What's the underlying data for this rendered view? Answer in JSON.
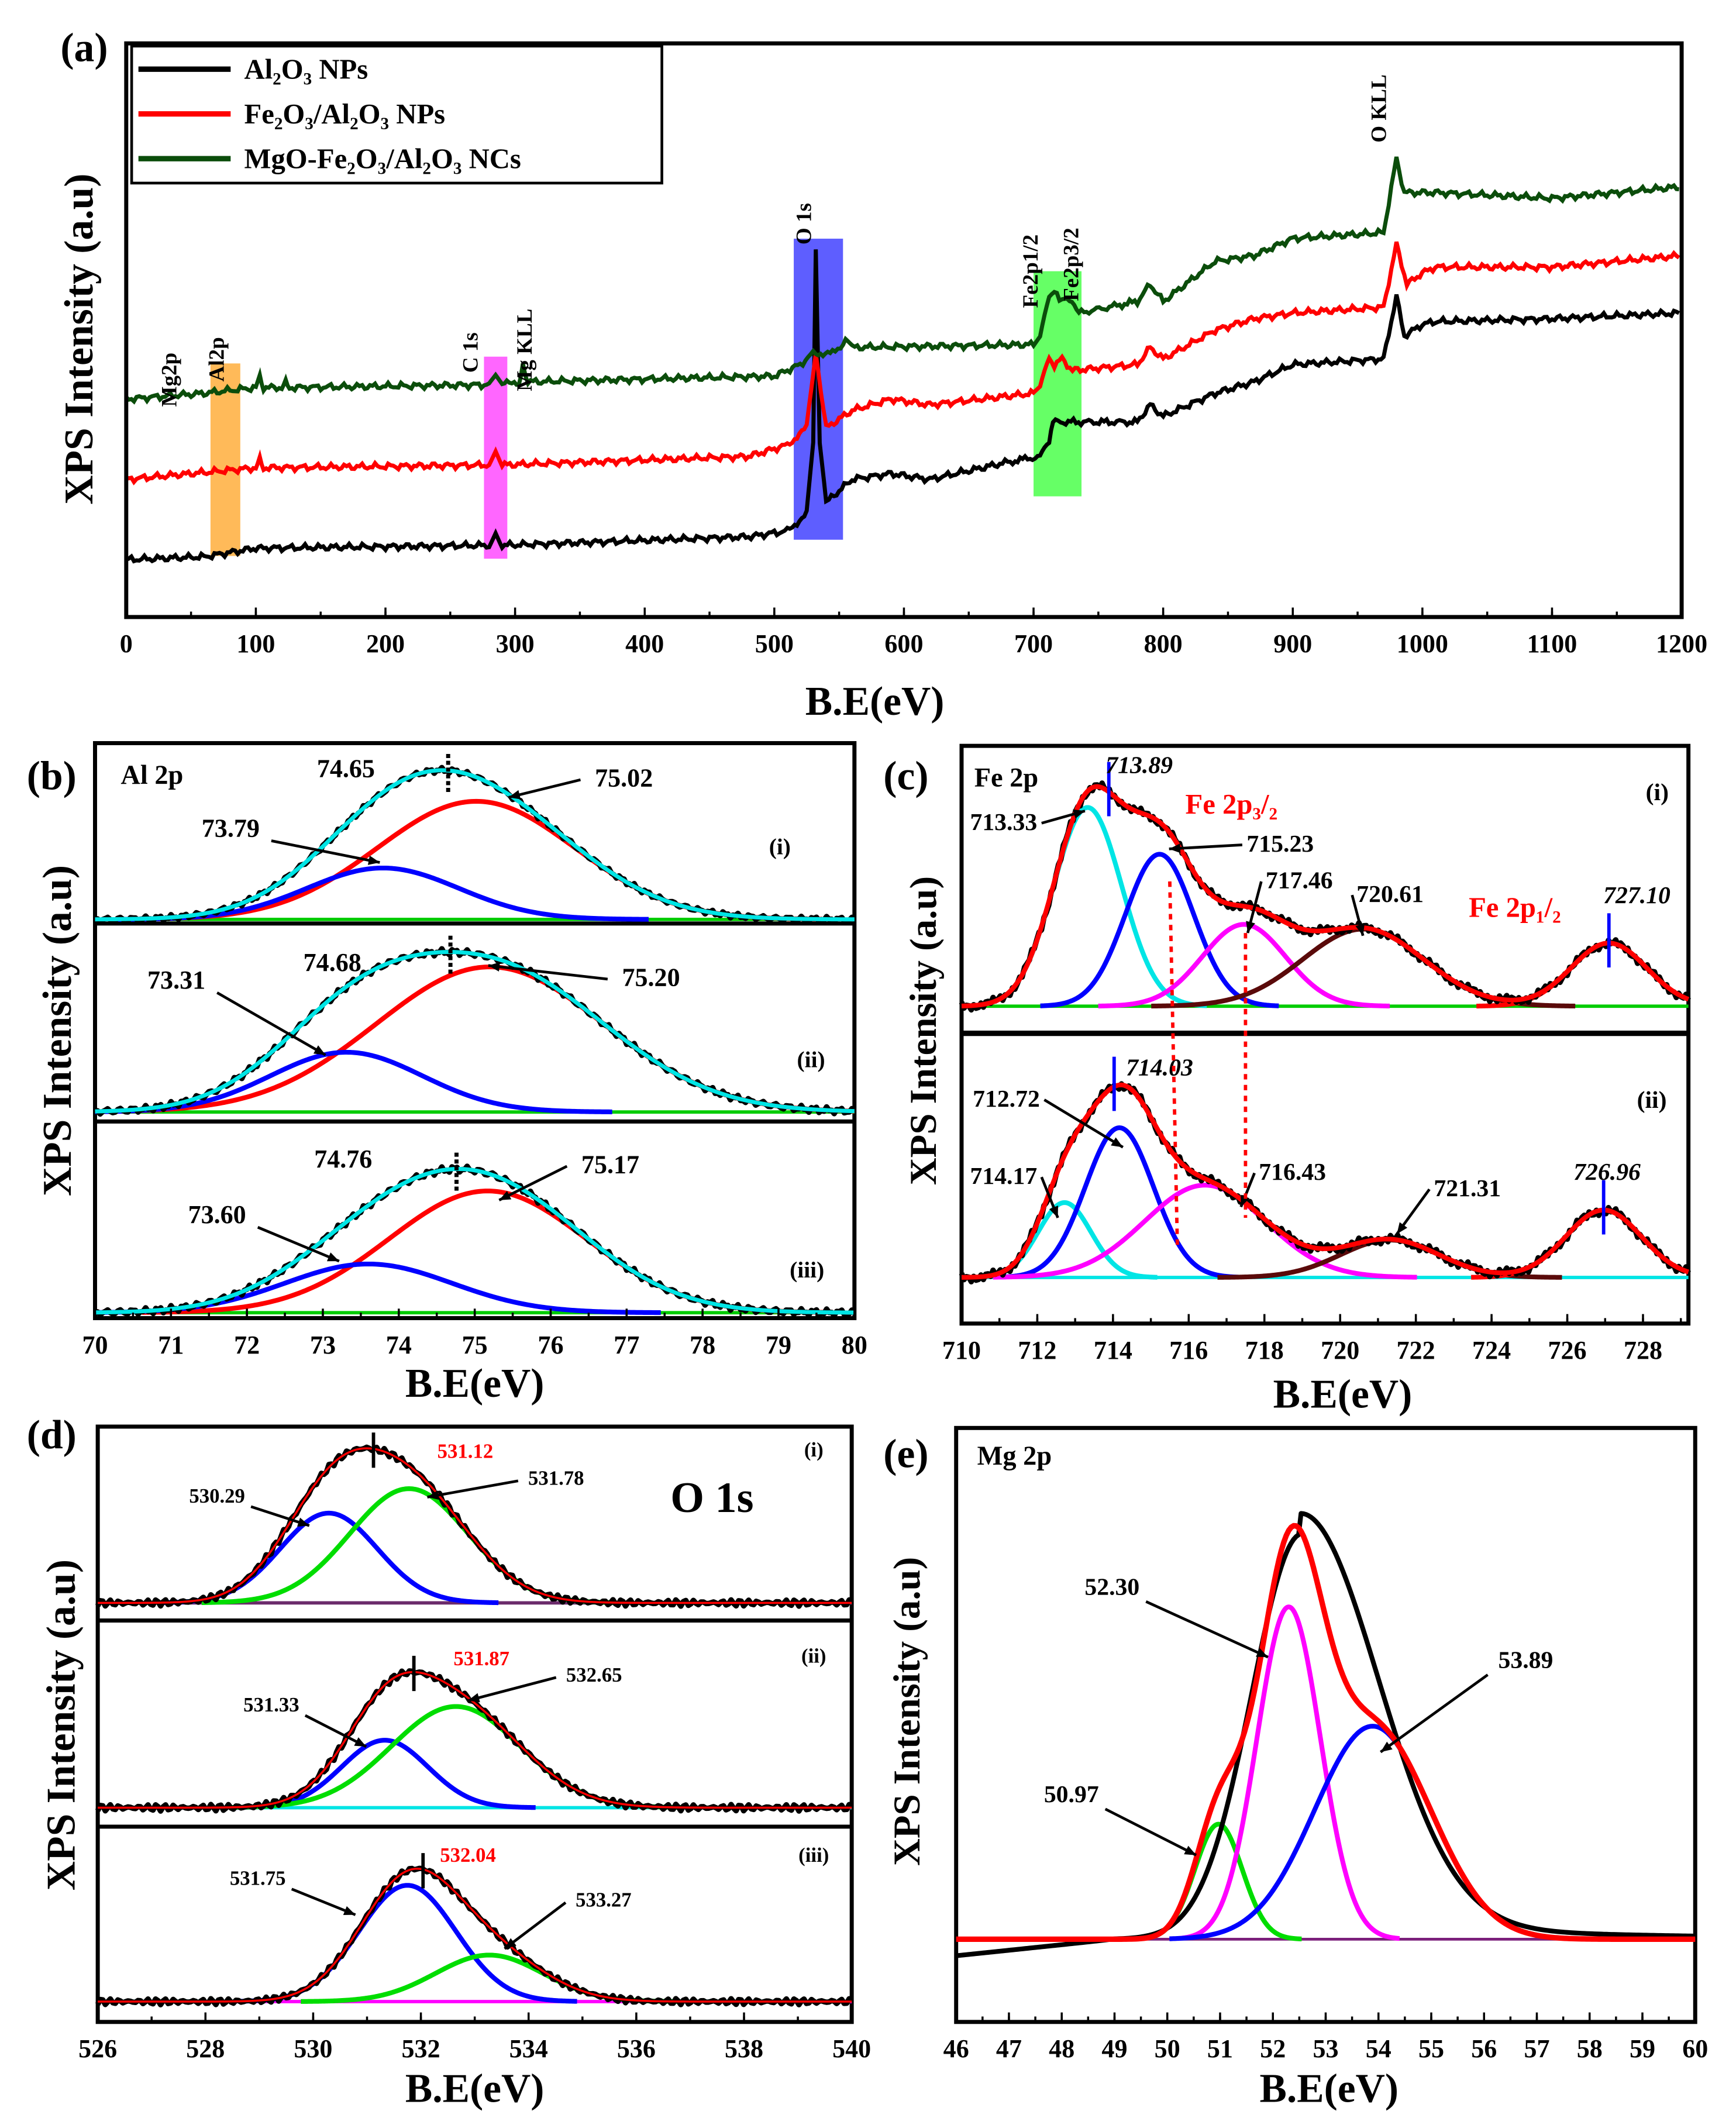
{
  "chart_data": [
    {
      "type": "line",
      "panel": "(a)",
      "xlabel": "B.E(eV)",
      "ylabel": "XPS Intensity (a.u)",
      "xlim": [
        0,
        1200
      ],
      "xticks": [
        "0",
        "100",
        "200",
        "300",
        "400",
        "500",
        "600",
        "700",
        "800",
        "900",
        "1000",
        "1100",
        "1200"
      ],
      "legend": "top-left",
      "series": [
        {
          "name": "Al₂O₃ NPs",
          "color": "#000000",
          "points": [
            [
              0,
              10
            ],
            [
              60,
              10.5
            ],
            [
              100,
              12
            ],
            [
              280,
              12.5
            ],
            [
              285,
              15
            ],
            [
              290,
              12.5
            ],
            [
              480,
              14
            ],
            [
              510,
              15
            ],
            [
              525,
              18
            ],
            [
              530,
              30
            ],
            [
              532,
              64
            ],
            [
              535,
              30
            ],
            [
              540,
              20
            ],
            [
              560,
              24
            ],
            [
              590,
              25
            ],
            [
              620,
              24
            ],
            [
              680,
              27
            ],
            [
              705,
              28
            ],
            [
              712,
              30
            ],
            [
              715,
              34
            ],
            [
              780,
              34
            ],
            [
              790,
              37
            ],
            [
              800,
              35
            ],
            [
              840,
              39
            ],
            [
              870,
              41
            ],
            [
              900,
              44
            ],
            [
              970,
              45
            ],
            [
              980,
              56
            ],
            [
              986,
              49
            ],
            [
              1000,
              51
            ],
            [
              1010,
              51.5
            ],
            [
              1100,
              52
            ],
            [
              1200,
              53
            ]
          ]
        },
        {
          "name": "Fe₂O₃/Al₂O₃ NPs",
          "color": "#ff0000",
          "points": [
            [
              0,
              24
            ],
            [
              100,
              26
            ],
            [
              103,
              28
            ],
            [
              106,
              26
            ],
            [
              280,
              26.5
            ],
            [
              285,
              29
            ],
            [
              290,
              26.5
            ],
            [
              480,
              28
            ],
            [
              510,
              30
            ],
            [
              525,
              33
            ],
            [
              532,
              46
            ],
            [
              540,
              33
            ],
            [
              560,
              36
            ],
            [
              590,
              38
            ],
            [
              620,
              37
            ],
            [
              700,
              39
            ],
            [
              705,
              40
            ],
            [
              712,
              45
            ],
            [
              716,
              44
            ],
            [
              722,
              45
            ],
            [
              730,
              43
            ],
            [
              780,
              44
            ],
            [
              790,
              47
            ],
            [
              800,
              45
            ],
            [
              840,
              50
            ],
            [
              870,
              52
            ],
            [
              900,
              53
            ],
            [
              970,
              54
            ],
            [
              980,
              65
            ],
            [
              988,
              58
            ],
            [
              1000,
              60
            ],
            [
              1010,
              61
            ],
            [
              1100,
              61
            ],
            [
              1200,
              63
            ]
          ]
        },
        {
          "name": "MgO-Fe₂O₃/Al₂O₃ NCs",
          "color": "#0b4d0b",
          "points": [
            [
              0,
              38
            ],
            [
              60,
              39
            ],
            [
              100,
              40
            ],
            [
              103,
              42
            ],
            [
              106,
              40
            ],
            [
              120,
              40
            ],
            [
              123,
              41.5
            ],
            [
              126,
              40
            ],
            [
              280,
              40.5
            ],
            [
              285,
              42
            ],
            [
              290,
              40.5
            ],
            [
              303,
              41
            ],
            [
              306,
              44
            ],
            [
              310,
              41
            ],
            [
              500,
              42
            ],
            [
              520,
              44
            ],
            [
              530,
              46
            ],
            [
              545,
              46
            ],
            [
              555,
              48
            ],
            [
              560,
              47
            ],
            [
              700,
              47.5
            ],
            [
              705,
              49
            ],
            [
              712,
              56
            ],
            [
              716,
              57
            ],
            [
              720,
              55
            ],
            [
              726,
              56
            ],
            [
              735,
              53
            ],
            [
              780,
              55
            ],
            [
              790,
              58
            ],
            [
              800,
              55
            ],
            [
              840,
              62
            ],
            [
              870,
              63
            ],
            [
              900,
              66
            ],
            [
              970,
              67
            ],
            [
              980,
              80
            ],
            [
              986,
              74
            ],
            [
              1000,
              74
            ],
            [
              1010,
              74
            ],
            [
              1100,
              73
            ],
            [
              1200,
              75
            ]
          ]
        }
      ],
      "peak_labels": [
        {
          "text": "Mg2p",
          "x": 40
        },
        {
          "text": "Al2p",
          "x": 75
        },
        {
          "text": "C 1s",
          "x": 280
        },
        {
          "text": "Mg KLL",
          "x": 306
        },
        {
          "text": "O 1s",
          "x": 532
        },
        {
          "text": "Fe2p1/2",
          "x": 711
        },
        {
          "text": "Fe2p3/2",
          "x": 733
        },
        {
          "text": "O KLL",
          "x": 975
        }
      ],
      "highlight_bands": [
        {
          "from": 65,
          "to": 88,
          "color": "#ffb347"
        },
        {
          "from": 276,
          "to": 294,
          "color": "#ff55ff"
        },
        {
          "from": 515,
          "to": 553,
          "color": "#4d4dff"
        },
        {
          "from": 700,
          "to": 737,
          "color": "#55ff55"
        }
      ]
    },
    {
      "type": "line",
      "panel": "(b)",
      "title": "Al 2p",
      "xlabel": "B.E(eV)",
      "ylabel": "XPS Intensity (a.u)",
      "xlim": [
        70,
        80
      ],
      "xticks": [
        "70",
        "71",
        "72",
        "73",
        "74",
        "75",
        "76",
        "77",
        "78",
        "79",
        "80"
      ],
      "subpanels": [
        {
          "label": "(i)",
          "envelope_peak": "74.65",
          "components": [
            {
              "center": 75.02,
              "height": 0.85,
              "width": 1.3,
              "color": "#ff0000",
              "label": "75.02"
            },
            {
              "center": 73.79,
              "height": 0.37,
              "width": 1.0,
              "color": "#0000ff",
              "label": "73.79"
            }
          ]
        },
        {
          "label": "(ii)",
          "envelope_peak": "74.68",
          "components": [
            {
              "center": 75.2,
              "height": 0.85,
              "width": 1.5,
              "color": "#ff0000",
              "label": "75.20"
            },
            {
              "center": 73.31,
              "height": 0.35,
              "width": 1.0,
              "color": "#0000ff",
              "label": "73.31"
            }
          ]
        },
        {
          "label": "(iii)",
          "envelope_peak": "74.76",
          "components": [
            {
              "center": 75.17,
              "height": 0.7,
              "width": 1.3,
              "color": "#ff0000",
              "label": "75.17"
            },
            {
              "center": 73.6,
              "height": 0.28,
              "width": 1.1,
              "color": "#0000ff",
              "label": "73.60"
            }
          ]
        }
      ],
      "envelope_color": "#00e5e5",
      "baseline_color": "#00cc00"
    },
    {
      "type": "line",
      "panel": "(c)",
      "title": "Fe 2p",
      "xlabel": "B.E(eV)",
      "ylabel": "XPS Intensity (a.u)",
      "xlim": [
        710,
        729.2
      ],
      "xticks": [
        "710",
        "712",
        "714",
        "716",
        "718",
        "720",
        "722",
        "724",
        "726",
        "728"
      ],
      "region_labels": [
        "Fe 2p₃/₂",
        "Fe 2p₁/₂"
      ],
      "subpanels": [
        {
          "label": "(i)",
          "marked_peaks": [
            "713.89",
            "727.10"
          ],
          "components": [
            {
              "center": 713.33,
              "height": 0.85,
              "width": 0.9,
              "color": "#00e5e5",
              "label": "713.33"
            },
            {
              "center": 715.23,
              "height": 0.65,
              "width": 0.9,
              "color": "#0000ff",
              "label": "715.23"
            },
            {
              "center": 717.46,
              "height": 0.35,
              "width": 1.1,
              "color": "#ff00ff",
              "label": "717.46"
            },
            {
              "center": 720.61,
              "height": 0.33,
              "width": 1.6,
              "color": "#5a0a0a",
              "label": "720.61"
            },
            {
              "center": 727.1,
              "height": 0.27,
              "width": 1.0,
              "color": "#ff0000",
              "label": ""
            }
          ]
        },
        {
          "label": "(ii)",
          "marked_peaks": [
            "714.03",
            "726.96"
          ],
          "components": [
            {
              "center": 712.72,
              "height": 0.3,
              "width": 0.7,
              "color": "#00e5e5",
              "label": "712.72"
            },
            {
              "center": 714.17,
              "height": 0.6,
              "width": 0.9,
              "color": "#0000ff",
              "label": "714.17"
            },
            {
              "center": 716.43,
              "height": 0.37,
              "width": 1.6,
              "color": "#ff00ff",
              "label": "716.43"
            },
            {
              "center": 721.31,
              "height": 0.15,
              "width": 1.3,
              "color": "#5a0a0a",
              "label": "721.31"
            },
            {
              "center": 726.96,
              "height": 0.27,
              "width": 1.0,
              "color": "#ff0000",
              "label": ""
            }
          ]
        }
      ]
    },
    {
      "type": "line",
      "panel": "(d)",
      "title": "O 1s",
      "xlabel": "B.E(eV)",
      "ylabel": "XPS Intensity (a.u)",
      "xlim": [
        526,
        540
      ],
      "xticks": [
        "526",
        "528",
        "530",
        "532",
        "534",
        "536",
        "538",
        "540"
      ],
      "subpanels": [
        {
          "label": "(i)",
          "envelope_peak": "531.12",
          "components": [
            {
              "center": 530.29,
              "height": 0.55,
              "width": 0.9,
              "color": "#0000ff",
              "label": "530.29"
            },
            {
              "center": 531.78,
              "height": 0.7,
              "width": 1.1,
              "color": "#00dd00",
              "label": "531.78"
            }
          ]
        },
        {
          "label": "(ii)",
          "envelope_peak": "531.87",
          "components": [
            {
              "center": 531.33,
              "height": 0.4,
              "width": 0.8,
              "color": "#0000ff",
              "label": "531.33"
            },
            {
              "center": 532.65,
              "height": 0.6,
              "width": 1.2,
              "color": "#00dd00",
              "label": "532.65"
            }
          ]
        },
        {
          "label": "(iii)",
          "envelope_peak": "532.04",
          "components": [
            {
              "center": 531.75,
              "height": 0.75,
              "width": 0.9,
              "color": "#0000ff",
              "label": "531.75"
            },
            {
              "center": 533.27,
              "height": 0.3,
              "width": 1.0,
              "color": "#00dd00",
              "label": "533.27"
            }
          ]
        }
      ]
    },
    {
      "type": "line",
      "panel": "(e)",
      "title": "Mg 2p",
      "xlabel": "B.E(eV)",
      "ylabel": "XPS Intensity (a.u)",
      "xlim": [
        46,
        60
      ],
      "xticks": [
        "46",
        "47",
        "48",
        "49",
        "50",
        "51",
        "52",
        "53",
        "54",
        "55",
        "56",
        "57",
        "58",
        "59",
        "60"
      ],
      "components": [
        {
          "center": 50.97,
          "height": 0.27,
          "width": 0.45,
          "color": "#00dd00",
          "label": "50.97"
        },
        {
          "center": 52.3,
          "height": 0.78,
          "width": 0.6,
          "color": "#ff00ff",
          "label": "52.30"
        },
        {
          "center": 53.89,
          "height": 0.5,
          "width": 1.1,
          "color": "#0000ff",
          "label": "53.89"
        }
      ]
    }
  ]
}
